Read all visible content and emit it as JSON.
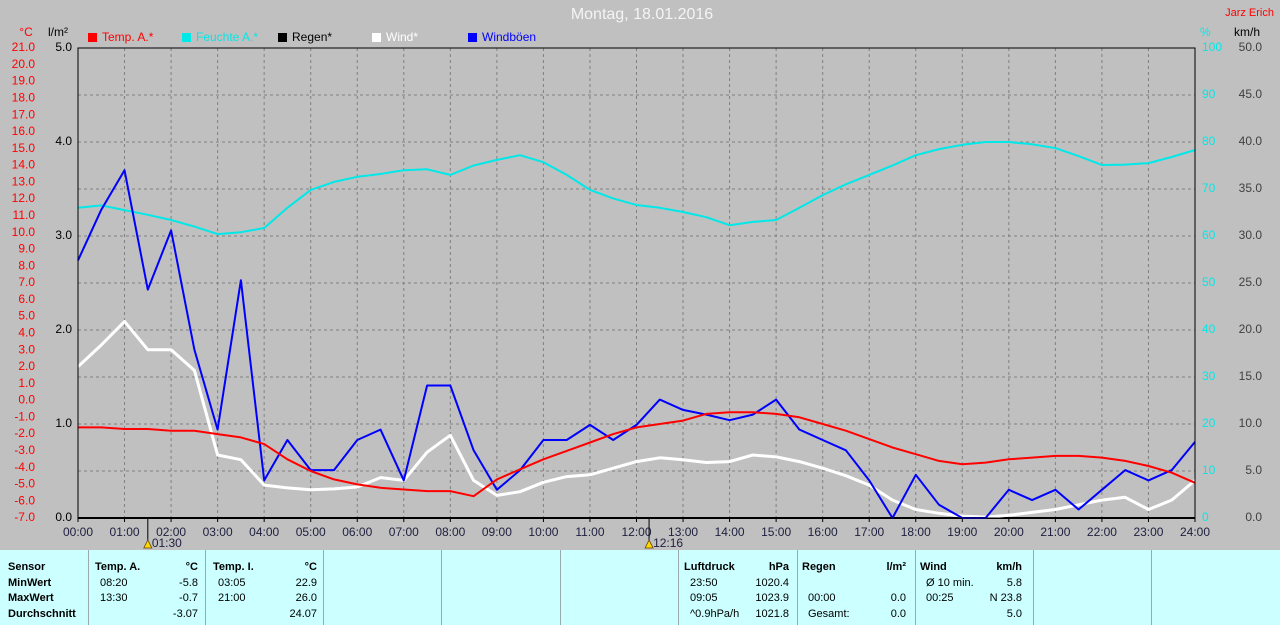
{
  "chart_data": {
    "type": "line",
    "title": "Montag, 18.01.2016",
    "author": "Jarz Erich",
    "axis_units": {
      "y": "°C",
      "y2": "l/m²",
      "y3": "%",
      "y4": "km/h"
    },
    "xlim": [
      0,
      24
    ],
    "xticks": [
      {
        "value": 0,
        "label": "00:00"
      },
      {
        "value": 1,
        "label": "01:00"
      },
      {
        "value": 2,
        "label": "02:00"
      },
      {
        "value": 3,
        "label": "03:00"
      },
      {
        "value": 4,
        "label": "04:00"
      },
      {
        "value": 5,
        "label": "05:00"
      },
      {
        "value": 6,
        "label": "06:00"
      },
      {
        "value": 7,
        "label": "07:00"
      },
      {
        "value": 8,
        "label": "08:00"
      },
      {
        "value": 9,
        "label": "09:00"
      },
      {
        "value": 10,
        "label": "10:00"
      },
      {
        "value": 11,
        "label": "11:00"
      },
      {
        "value": 12,
        "label": "12:00"
      },
      {
        "value": 13,
        "label": "13:00"
      },
      {
        "value": 14,
        "label": "14:00"
      },
      {
        "value": 15,
        "label": "15:00"
      },
      {
        "value": 16,
        "label": "16:00"
      },
      {
        "value": 17,
        "label": "17:00"
      },
      {
        "value": 18,
        "label": "18:00"
      },
      {
        "value": 19,
        "label": "19:00"
      },
      {
        "value": 20,
        "label": "20:00"
      },
      {
        "value": 21,
        "label": "21:00"
      },
      {
        "value": 22,
        "label": "22:00"
      },
      {
        "value": 23,
        "label": "23:00"
      },
      {
        "value": 24,
        "label": "24:00"
      }
    ],
    "ylim": [
      -7,
      21
    ],
    "yticks": [
      {
        "value": -7,
        "label": "-7.0"
      },
      {
        "value": -6,
        "label": "-6.0"
      },
      {
        "value": -5,
        "label": "-5.0"
      },
      {
        "value": -4,
        "label": "-4.0"
      },
      {
        "value": -3,
        "label": "-3.0"
      },
      {
        "value": -2,
        "label": "-2.0"
      },
      {
        "value": -1,
        "label": "-1.0"
      },
      {
        "value": 0,
        "label": "0.0"
      },
      {
        "value": 1,
        "label": "1.0"
      },
      {
        "value": 2,
        "label": "2.0"
      },
      {
        "value": 3,
        "label": "3.0"
      },
      {
        "value": 4,
        "label": "4.0"
      },
      {
        "value": 5,
        "label": "5.0"
      },
      {
        "value": 6,
        "label": "6.0"
      },
      {
        "value": 7,
        "label": "7.0"
      },
      {
        "value": 8,
        "label": "8.0"
      },
      {
        "value": 9,
        "label": "9.0"
      },
      {
        "value": 10,
        "label": "10.0"
      },
      {
        "value": 11,
        "label": "11.0"
      },
      {
        "value": 12,
        "label": "12.0"
      },
      {
        "value": 13,
        "label": "13.0"
      },
      {
        "value": 14,
        "label": "14.0"
      },
      {
        "value": 15,
        "label": "15.0"
      },
      {
        "value": 16,
        "label": "16.0"
      },
      {
        "value": 17,
        "label": "17.0"
      },
      {
        "value": 18,
        "label": "18.0"
      },
      {
        "value": 19,
        "label": "19.0"
      },
      {
        "value": 20,
        "label": "20.0"
      },
      {
        "value": 21,
        "label": "21.0"
      }
    ],
    "y2lim": [
      0,
      5
    ],
    "y2ticks": [
      {
        "value": 0,
        "label": "0.0"
      },
      {
        "value": 1,
        "label": "1.0"
      },
      {
        "value": 2,
        "label": "2.0"
      },
      {
        "value": 3,
        "label": "3.0"
      },
      {
        "value": 4,
        "label": "4.0"
      },
      {
        "value": 5,
        "label": "5.0"
      }
    ],
    "y3lim": [
      0,
      100
    ],
    "y3ticks": [
      0,
      10,
      20,
      30,
      40,
      50,
      60,
      70,
      80,
      90,
      100
    ],
    "y4lim": [
      0,
      50
    ],
    "y4ticks": [
      {
        "value": 0,
        "label": "0.0"
      },
      {
        "value": 5,
        "label": "5.0"
      },
      {
        "value": 10,
        "label": "10.0"
      },
      {
        "value": 15,
        "label": "15.0"
      },
      {
        "value": 20,
        "label": "20.0"
      },
      {
        "value": 25,
        "label": "25.0"
      },
      {
        "value": 30,
        "label": "30.0"
      },
      {
        "value": 35,
        "label": "35.0"
      },
      {
        "value": 40,
        "label": "40.0"
      },
      {
        "value": 45,
        "label": "45.0"
      },
      {
        "value": 50,
        "label": "50.0"
      }
    ],
    "grid": true,
    "annotations": [
      {
        "x": 1.5,
        "label": "01:30"
      },
      {
        "x": 12.27,
        "label": "12:16"
      }
    ],
    "x": [
      0,
      0.5,
      1,
      1.5,
      2,
      2.5,
      3,
      3.5,
      4,
      4.5,
      5,
      5.5,
      6,
      6.5,
      7,
      7.5,
      8,
      8.5,
      9,
      9.5,
      10,
      10.5,
      11,
      11.5,
      12,
      12.5,
      13,
      13.5,
      14,
      14.5,
      15,
      15.5,
      16,
      16.5,
      17,
      17.5,
      18,
      18.5,
      19,
      19.5,
      20,
      20.5,
      21,
      21.5,
      22,
      22.5,
      23,
      23.5,
      24
    ],
    "series": [
      {
        "name": "Temp. A.*",
        "color": "#ff0000",
        "axis": "y",
        "values": [
          -1.6,
          -1.6,
          -1.7,
          -1.7,
          -1.8,
          -1.8,
          -2.0,
          -2.2,
          -2.6,
          -3.5,
          -4.2,
          -4.7,
          -5.0,
          -5.2,
          -5.3,
          -5.4,
          -5.4,
          -5.7,
          -4.7,
          -4.1,
          -3.5,
          -3.0,
          -2.5,
          -2.0,
          -1.6,
          -1.4,
          -1.2,
          -0.8,
          -0.7,
          -0.7,
          -0.8,
          -1.0,
          -1.4,
          -1.8,
          -2.3,
          -2.8,
          -3.2,
          -3.6,
          -3.8,
          -3.7,
          -3.5,
          -3.4,
          -3.3,
          -3.3,
          -3.4,
          -3.6,
          -3.9,
          -4.3,
          -4.9
        ]
      },
      {
        "name": "Feuchte A.*",
        "color": "#00e8e8",
        "axis": "y3",
        "values": [
          66,
          66.5,
          65.5,
          64.5,
          63.4,
          62,
          60.4,
          60.8,
          61.7,
          66,
          69.8,
          71.5,
          72.6,
          73.2,
          74,
          74.2,
          73,
          75,
          76.2,
          77.2,
          75.7,
          73,
          69.8,
          68,
          66.6,
          66,
          65.1,
          64,
          62.3,
          63,
          63.4,
          66,
          68.7,
          71,
          73,
          75,
          77.2,
          78.5,
          79.4,
          80,
          80,
          79.5,
          78.7,
          77,
          75.1,
          75.2,
          75.5,
          76.8,
          78.3
        ]
      },
      {
        "name": "Regen*",
        "color": "#000000",
        "axis": "y2",
        "values": [
          0,
          0,
          0,
          0,
          0,
          0,
          0,
          0,
          0,
          0,
          0,
          0,
          0,
          0,
          0,
          0,
          0,
          0,
          0,
          0,
          0,
          0,
          0,
          0,
          0,
          0,
          0,
          0,
          0,
          0,
          0,
          0,
          0,
          0,
          0,
          0,
          0,
          0,
          0,
          0,
          0,
          0,
          0,
          0,
          0,
          0,
          0,
          0,
          0
        ]
      },
      {
        "name": "Wind*",
        "color": "#ffffff",
        "axis": "y4",
        "values": [
          16.1,
          18.4,
          20.9,
          17.9,
          17.9,
          15.7,
          6.7,
          6.2,
          3.5,
          3.2,
          3.0,
          3.1,
          3.3,
          4.3,
          4.0,
          7.0,
          8.8,
          4.0,
          2.4,
          2.8,
          3.8,
          4.4,
          4.6,
          5.3,
          6.0,
          6.4,
          6.2,
          5.9,
          6.0,
          6.7,
          6.5,
          6.0,
          5.3,
          4.5,
          3.5,
          1.9,
          0.9,
          0.5,
          0.2,
          0.1,
          0.3,
          0.6,
          0.9,
          1.4,
          1.9,
          2.2,
          0.9,
          1.9,
          4.0
        ]
      },
      {
        "name": "Windböen",
        "color": "#0000ff",
        "axis": "y4",
        "values": [
          27.4,
          32.8,
          37.0,
          24.3,
          30.6,
          17.9,
          9.4,
          25.3,
          4.0,
          8.3,
          5.1,
          5.1,
          8.3,
          9.4,
          4.0,
          14.1,
          14.1,
          7.2,
          3.0,
          5.1,
          8.3,
          8.3,
          9.9,
          8.3,
          9.9,
          12.6,
          11.5,
          11.0,
          10.4,
          11.0,
          12.6,
          9.4,
          8.3,
          7.2,
          4.0,
          0,
          4.6,
          1.4,
          0,
          0,
          3.0,
          1.9,
          3.0,
          0.9,
          3.0,
          5.1,
          4.0,
          5.1,
          8.1
        ]
      }
    ]
  },
  "table": {
    "row_labels": [
      "Sensor",
      "MinWert",
      "MaxWert",
      "Durchschnitt"
    ],
    "groups": [
      {
        "title": "Temp. A.",
        "unit": "°C",
        "rows": [
          [
            "08:20",
            "-5.8"
          ],
          [
            "13:30",
            "-0.7"
          ],
          [
            "-3.07"
          ]
        ]
      },
      {
        "title": "Temp. I.",
        "unit": "°C",
        "rows": [
          [
            "03:05",
            "22.9"
          ],
          [
            "21:00",
            "26.0"
          ],
          [
            "24.07"
          ]
        ]
      },
      {
        "title": "Luftdruck",
        "unit": "hPa",
        "rows": [
          [
            "23:50",
            "1020.4"
          ],
          [
            "09:05",
            "1023.9"
          ],
          [
            "^0.9hPa/h",
            "1021.8"
          ]
        ]
      },
      {
        "title": "Regen",
        "unit": "l/m²",
        "rows": [
          null,
          [
            "00:00",
            "0.0"
          ],
          [
            "Gesamt:",
            "0.0"
          ]
        ]
      },
      {
        "title": "Wind",
        "unit": "km/h",
        "rows": [
          [
            "Ø 10 min.",
            "5.8"
          ],
          [
            "00:25",
            "N 23.8"
          ],
          [
            "5.0"
          ]
        ]
      }
    ]
  }
}
